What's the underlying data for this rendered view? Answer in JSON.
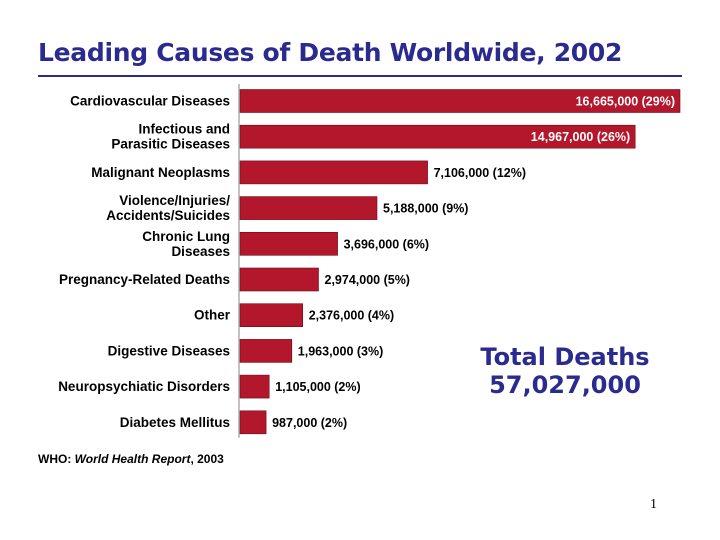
{
  "chart_data": {
    "type": "bar",
    "orientation": "horizontal",
    "title": "Leading Causes of Death Worldwide, 2002",
    "categories": [
      [
        "Cardiovascular Diseases"
      ],
      [
        "Infectious and",
        "Parasitic Diseases"
      ],
      [
        "Malignant Neoplasms"
      ],
      [
        "Violence/Injuries/",
        "Accidents/Suicides"
      ],
      [
        "Chronic Lung",
        "Diseases"
      ],
      [
        "Pregnancy-Related Deaths"
      ],
      [
        "Other"
      ],
      [
        "Digestive Diseases"
      ],
      [
        "Neuropsychiatic Disorders"
      ],
      [
        "Diabetes Mellitus"
      ]
    ],
    "values": [
      16665000,
      14967000,
      7106000,
      5188000,
      3696000,
      2974000,
      2376000,
      1963000,
      1105000,
      987000
    ],
    "data_labels": [
      "16,665,000 (29%)",
      "14,967,000 (26%)",
      "7,106,000 (12%)",
      "5,188,000 (9%)",
      "3,696,000 (6%)",
      "2,974,000 (5%)",
      "2,376,000 (4%)",
      "1,963,000 (3%)",
      "1,105,000 (2%)",
      "987,000 (2%)"
    ],
    "label_inside": [
      true,
      true,
      false,
      false,
      false,
      false,
      false,
      false,
      false,
      false
    ],
    "bar_color": "#b3172b",
    "xlim": [
      0,
      16665000
    ],
    "grid": false,
    "legend": "none"
  },
  "annotation": {
    "line1": "Total Deaths",
    "line2": "57,027,000"
  },
  "source": {
    "prefix": "WHO: ",
    "title": "World Health Report",
    "suffix": ", 2003"
  },
  "page_number": "1",
  "colors": {
    "title": "#2b2a8f",
    "bar": "#b3172b",
    "axis": "#999999"
  }
}
